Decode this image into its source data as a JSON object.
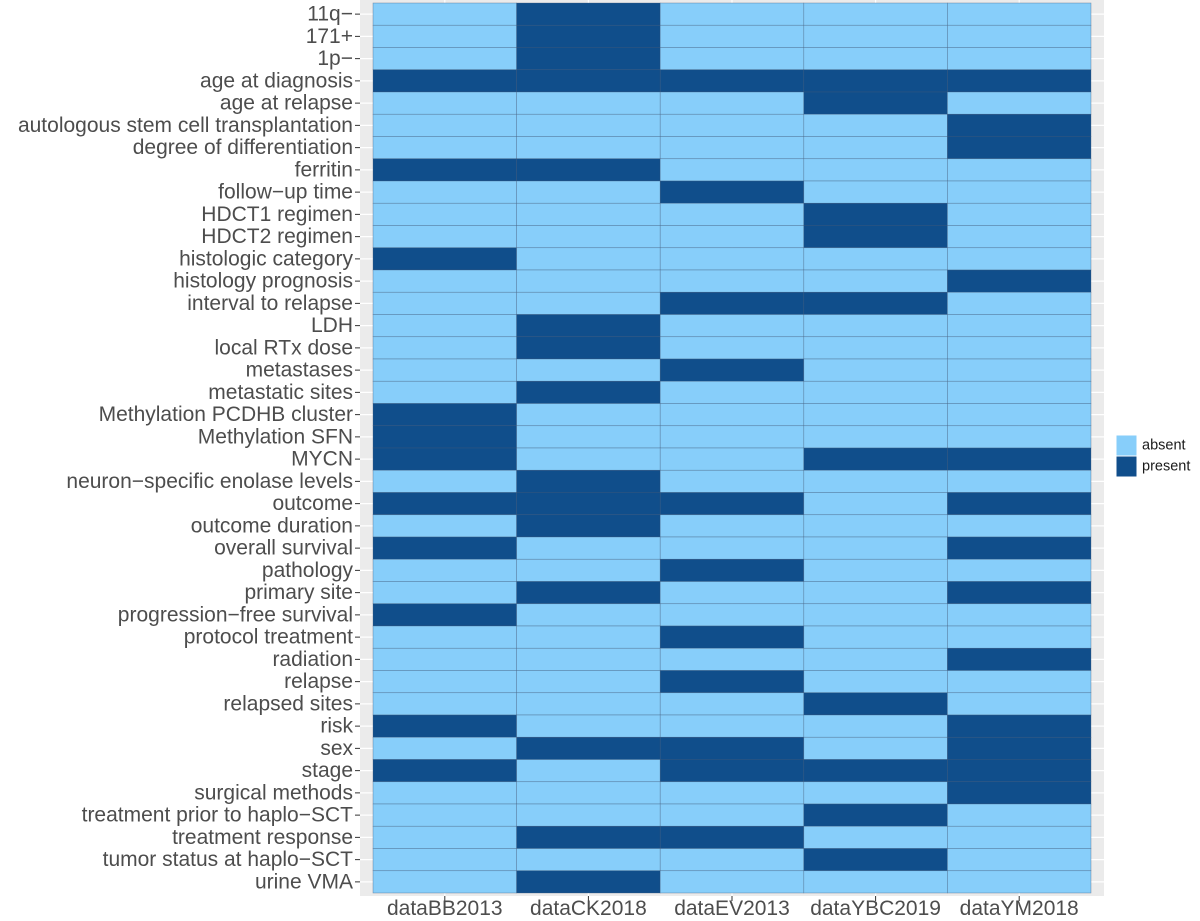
{
  "chart_data": {
    "type": "heatmap",
    "title": "",
    "xlabel": "",
    "ylabel": "",
    "x_categories": [
      "dataBB2013",
      "dataCK2018",
      "dataEV2013",
      "dataYBC2019",
      "dataYM2018"
    ],
    "y_categories": [
      "11q−",
      "171+",
      "1p−",
      "age at diagnosis",
      "age at relapse",
      "autologous stem cell transplantation",
      "degree of differentiation",
      "ferritin",
      "follow−up time",
      "HDCT1 regimen",
      "HDCT2 regimen",
      "histologic category",
      "histology prognosis",
      "interval to relapse",
      "LDH",
      "local RTx dose",
      "metastases",
      "metastatic sites",
      "Methylation PCDHB cluster",
      "Methylation SFN",
      "MYCN",
      "neuron−specific enolase levels",
      "outcome",
      "outcome duration",
      "overall survival",
      "pathology",
      "primary site",
      "progression−free survival",
      "protocol treatment",
      "radiation",
      "relapse",
      "relapsed sites",
      "risk",
      "sex",
      "stage",
      "surgical methods",
      "treatment prior to haplo−SCT",
      "treatment response",
      "tumor status at haplo−SCT",
      "urine VMA"
    ],
    "values": [
      [
        0,
        1,
        0,
        0,
        0
      ],
      [
        0,
        1,
        0,
        0,
        0
      ],
      [
        0,
        1,
        0,
        0,
        0
      ],
      [
        1,
        1,
        1,
        1,
        1
      ],
      [
        0,
        0,
        0,
        1,
        0
      ],
      [
        0,
        0,
        0,
        0,
        1
      ],
      [
        0,
        0,
        0,
        0,
        1
      ],
      [
        1,
        1,
        0,
        0,
        0
      ],
      [
        0,
        0,
        1,
        0,
        0
      ],
      [
        0,
        0,
        0,
        1,
        0
      ],
      [
        0,
        0,
        0,
        1,
        0
      ],
      [
        1,
        0,
        0,
        0,
        0
      ],
      [
        0,
        0,
        0,
        0,
        1
      ],
      [
        0,
        0,
        1,
        1,
        0
      ],
      [
        0,
        1,
        0,
        0,
        0
      ],
      [
        0,
        1,
        0,
        0,
        0
      ],
      [
        0,
        0,
        1,
        0,
        0
      ],
      [
        0,
        1,
        0,
        0,
        0
      ],
      [
        1,
        0,
        0,
        0,
        0
      ],
      [
        1,
        0,
        0,
        0,
        0
      ],
      [
        1,
        0,
        0,
        1,
        1
      ],
      [
        0,
        1,
        0,
        0,
        0
      ],
      [
        1,
        1,
        1,
        0,
        1
      ],
      [
        0,
        1,
        0,
        0,
        0
      ],
      [
        1,
        0,
        0,
        0,
        1
      ],
      [
        0,
        0,
        1,
        0,
        0
      ],
      [
        0,
        1,
        0,
        0,
        1
      ],
      [
        1,
        0,
        0,
        0,
        0
      ],
      [
        0,
        0,
        1,
        0,
        0
      ],
      [
        0,
        0,
        0,
        0,
        1
      ],
      [
        0,
        0,
        1,
        0,
        0
      ],
      [
        0,
        0,
        0,
        1,
        0
      ],
      [
        1,
        0,
        0,
        0,
        1
      ],
      [
        0,
        1,
        1,
        0,
        1
      ],
      [
        1,
        0,
        1,
        1,
        1
      ],
      [
        0,
        0,
        0,
        0,
        1
      ],
      [
        0,
        0,
        0,
        1,
        0
      ],
      [
        0,
        1,
        1,
        0,
        0
      ],
      [
        0,
        0,
        0,
        1,
        0
      ],
      [
        0,
        1,
        0,
        0,
        0
      ]
    ],
    "value_labels": [
      "absent",
      "present"
    ],
    "colors": {
      "absent": "#87cefa",
      "present": "#104e8b",
      "panel": "#ebebeb",
      "grid": "#ffffff",
      "tile_border": "#3f5a7a"
    },
    "legend": {
      "entries": [
        "absent",
        "present"
      ],
      "position": "right"
    },
    "grid": true
  }
}
